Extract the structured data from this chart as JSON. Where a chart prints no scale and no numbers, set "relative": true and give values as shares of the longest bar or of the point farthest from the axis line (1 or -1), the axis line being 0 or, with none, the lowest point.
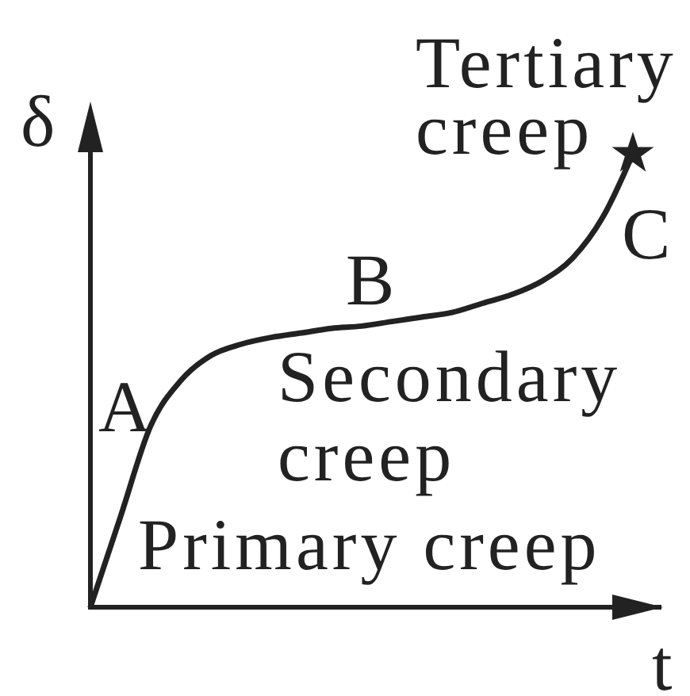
{
  "chart_data": {
    "type": "line",
    "xlabel": "t",
    "ylabel": "δ",
    "relative": true,
    "marker": "none",
    "line_style": "solid",
    "categories": [
      null,
      null,
      null,
      null,
      null,
      null,
      null,
      null,
      null,
      null,
      null,
      null,
      null,
      null,
      null,
      null,
      null,
      null,
      null
    ],
    "series": [
      {
        "color": "#222222",
        "values": [
          0,
          0.2,
          0.4,
          0.5,
          0.555,
          0.58,
          0.595,
          0.605,
          0.615,
          0.62,
          0.63,
          0.64,
          0.65,
          0.67,
          0.69,
          0.72,
          0.77,
          0.86,
          1
        ]
      }
    ],
    "annotations": [
      "Tertiary creep",
      "A",
      "B",
      "C",
      "Secondary creep",
      "Primary creep"
    ]
  }
}
